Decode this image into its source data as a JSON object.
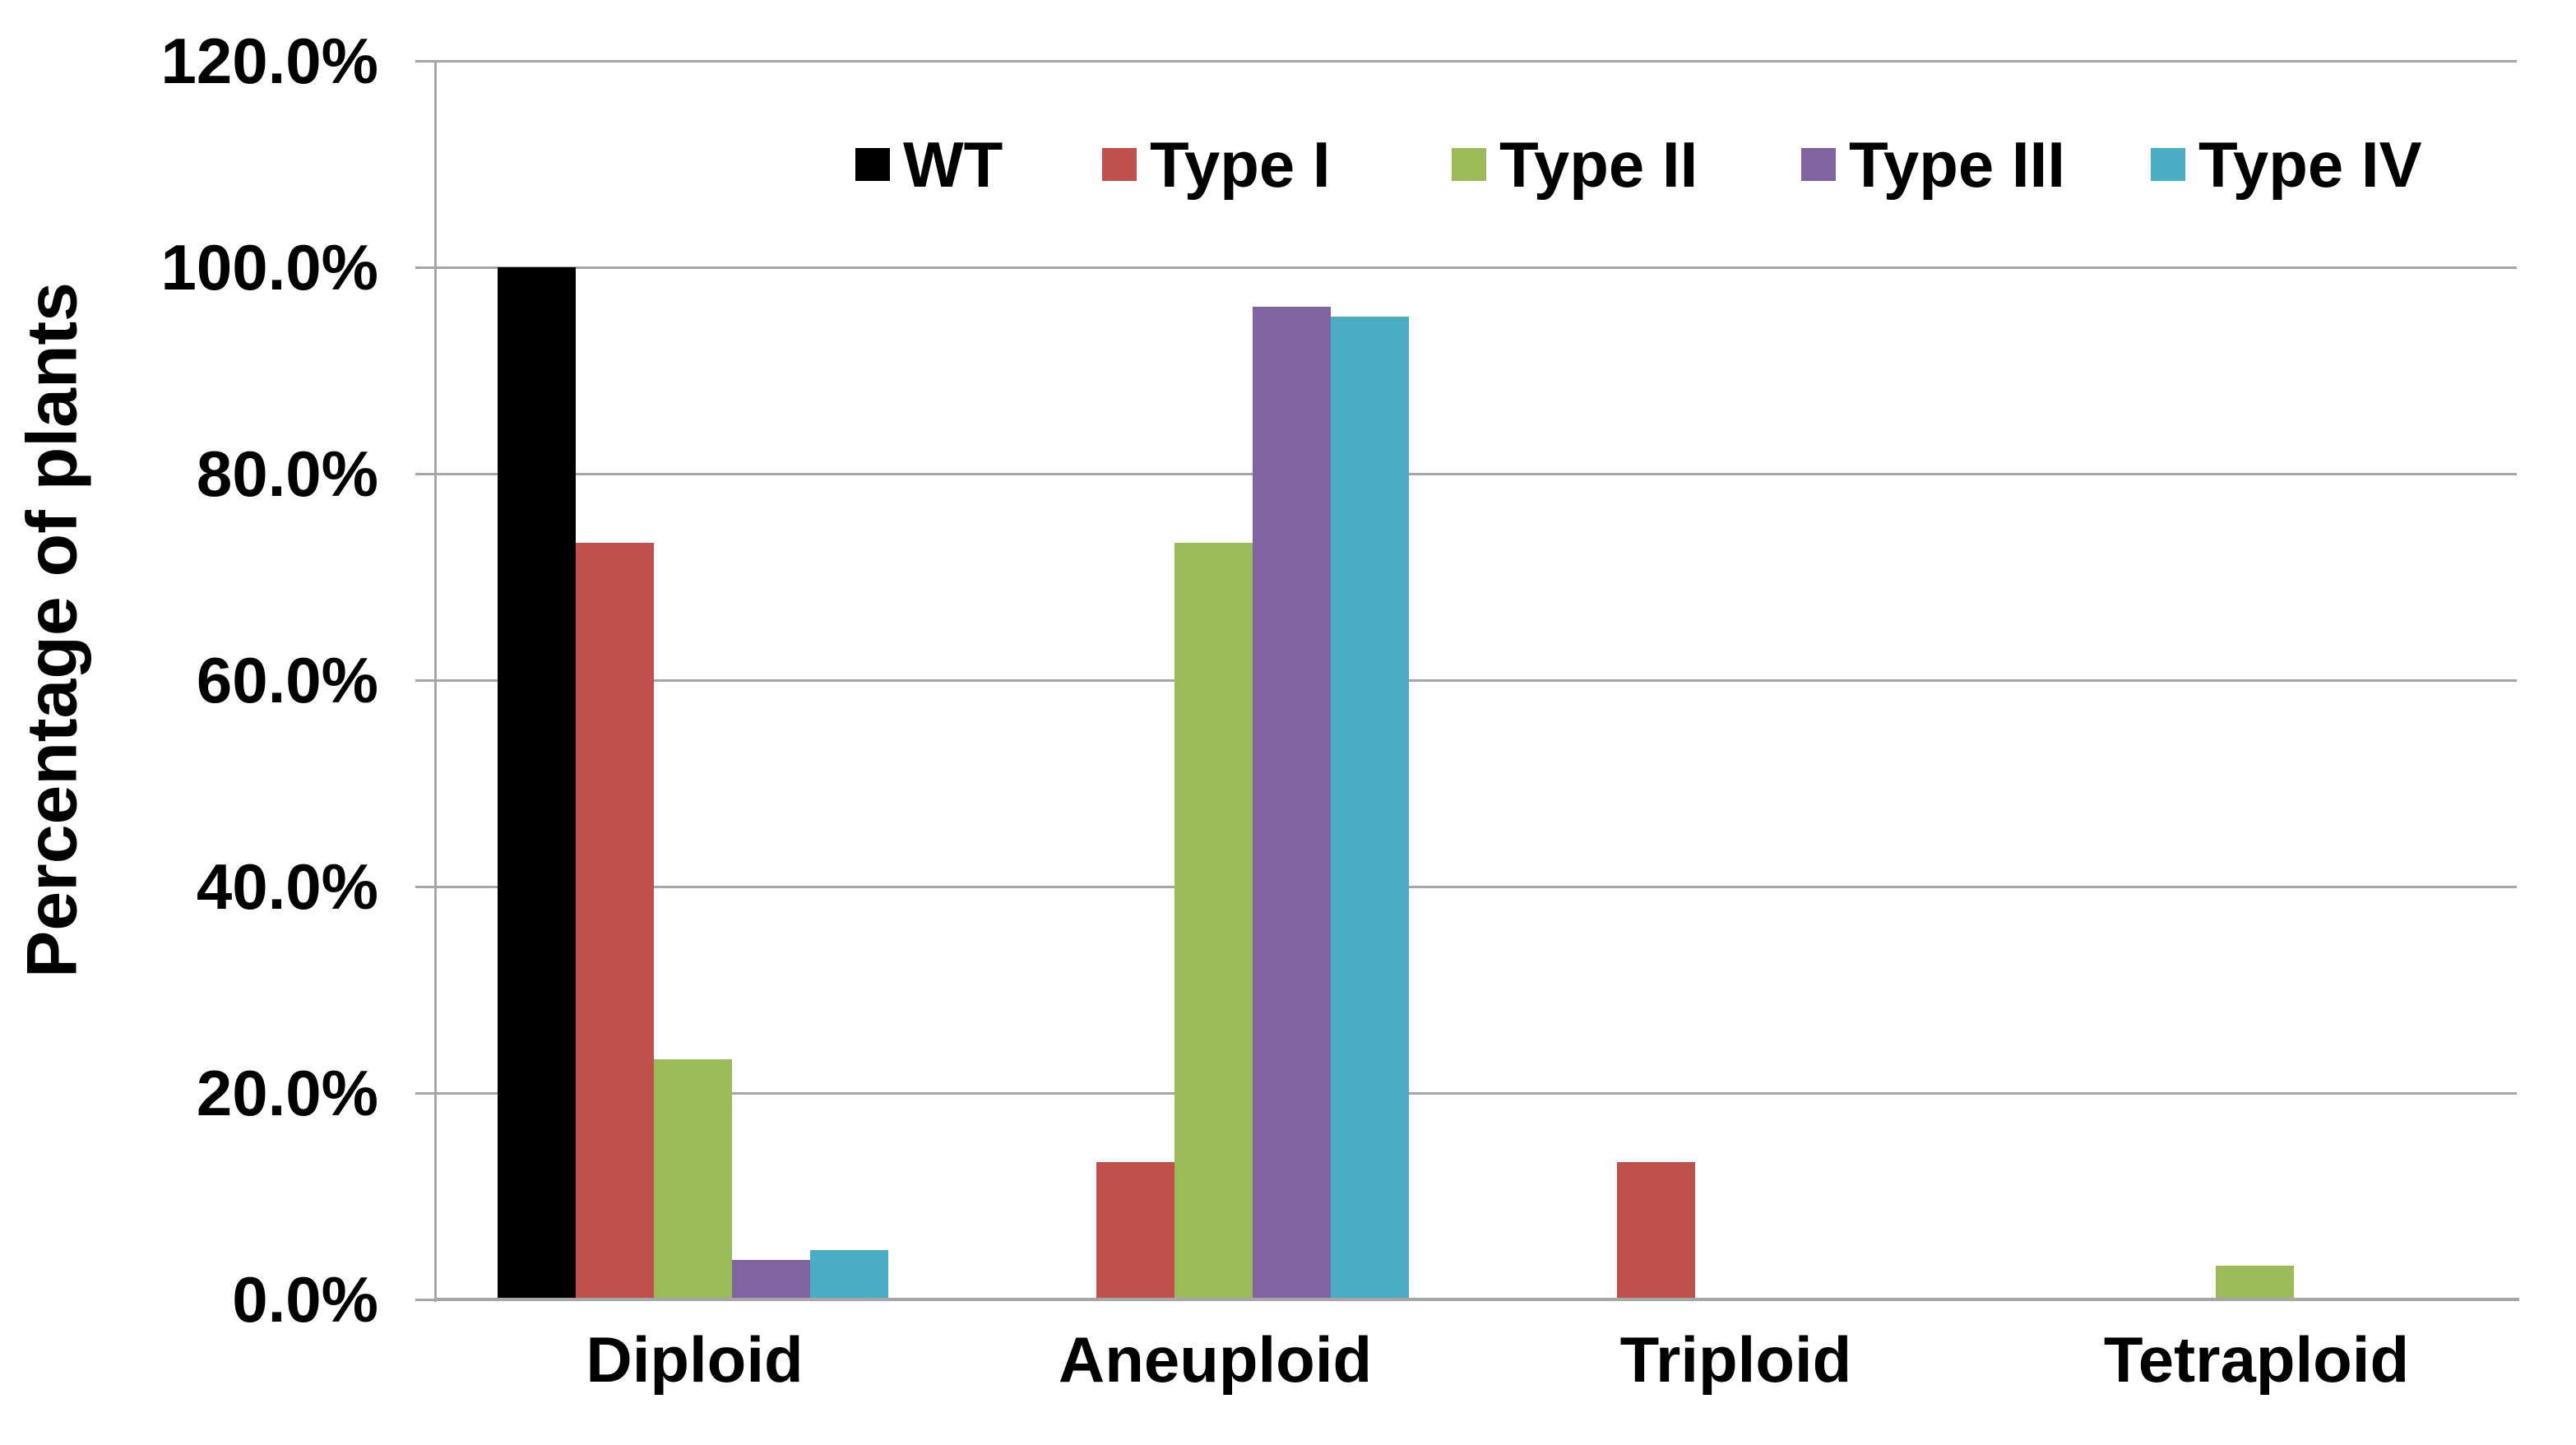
{
  "chart_data": {
    "type": "bar",
    "title": "",
    "xlabel": "",
    "ylabel": "Percentage of plants",
    "categories": [
      "Diploid",
      "Aneuploid",
      "Triploid",
      "Tetraploid"
    ],
    "series": [
      {
        "name": "WT",
        "color": "#000000",
        "values": [
          100.0,
          0,
          0,
          0
        ]
      },
      {
        "name": "Type I",
        "color": "#C0504D",
        "values": [
          73.3,
          13.3,
          13.3,
          0
        ]
      },
      {
        "name": "Type II",
        "color": "#9BBB59",
        "values": [
          23.3,
          73.3,
          0,
          3.3
        ]
      },
      {
        "name": "Type III",
        "color": "#8064A2",
        "values": [
          3.8,
          96.2,
          0,
          0
        ]
      },
      {
        "name": "Type IV",
        "color": "#4BACC6",
        "values": [
          4.8,
          95.2,
          0,
          0
        ]
      }
    ],
    "ylim": [
      0,
      120
    ],
    "yticks": [
      0,
      20,
      40,
      60,
      80,
      100,
      120
    ],
    "ytick_labels": [
      "0.0%",
      "20.0%",
      "40.0%",
      "60.0%",
      "80.0%",
      "100.0%",
      "120.0%"
    ],
    "grid": true,
    "legend_position": "top-inside"
  },
  "colors": {
    "background": "#FFFFFF",
    "gridline": "#A6A6A6",
    "axis": "#A6A6A6",
    "text": "#000000"
  }
}
